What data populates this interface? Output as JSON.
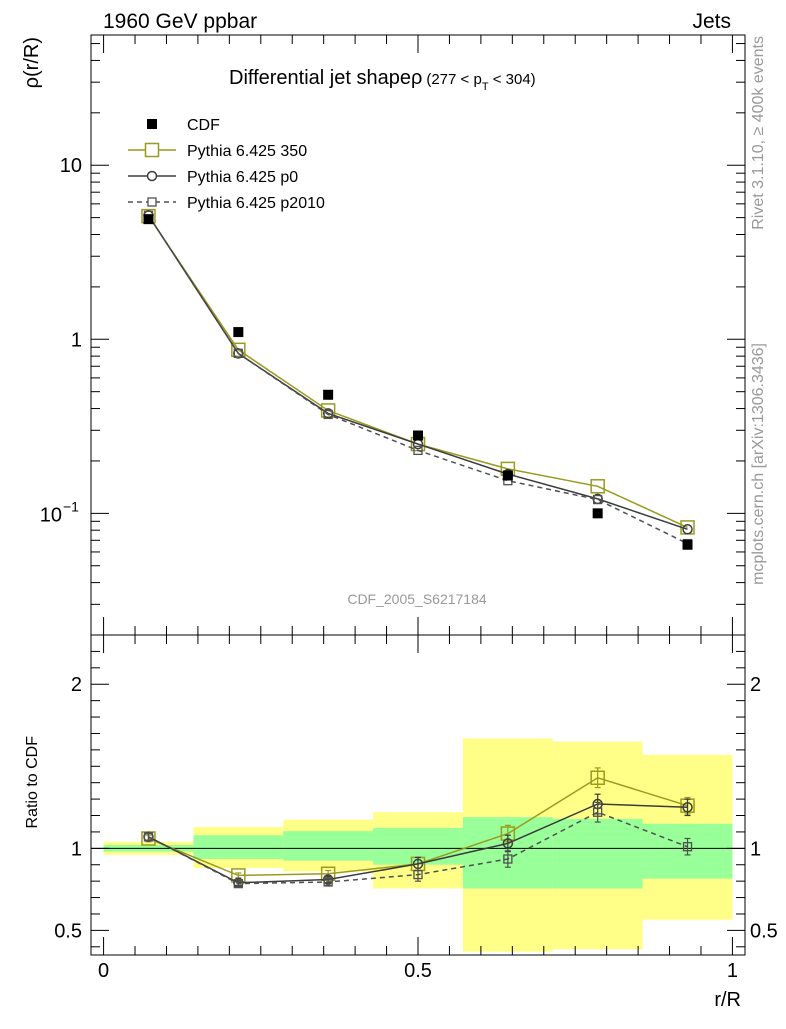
{
  "header": {
    "left": "1960 GeV ppbar",
    "right": "Jets",
    "side_top": "Rivet 3.1.10, ≥ 400k events",
    "side_bottom": "mcplots.cern.ch [arXiv:1306.3436]"
  },
  "colors": {
    "data": "#000000",
    "pythia350": "#9a9a1e",
    "pythia_p0": "#3c3c3c",
    "pythia_p2010": "#505050",
    "band_inner": "#99ff99",
    "band_outer": "#ffff88",
    "watermark": "#999999"
  },
  "chart_data": [
    {
      "type": "line",
      "title": "Differential jet shapeρ",
      "title_suffix": "(277 < p_T < 304)",
      "title_suffix_parts": [
        "(277 < p",
        "T",
        " < 304)"
      ],
      "ylabel": "ρ(r/R)",
      "watermark": "CDF_2005_S6217184",
      "yscale": "log",
      "xlim": [
        -0.02,
        1.02
      ],
      "ylim": [
        0.02,
        56
      ],
      "yticks_major": [
        0.1,
        1,
        10
      ],
      "yticks_labels": [
        "10",
        "",
        "1",
        "10"
      ],
      "yticks_label_parts": {
        "ten": "10",
        "minus_one": "−1",
        "one": "1",
        "ten_pos": "10"
      },
      "x": [
        0.0714,
        0.2143,
        0.3571,
        0.5,
        0.6429,
        0.7857,
        0.9286
      ],
      "series": [
        {
          "name": "CDF",
          "style": "data",
          "values": [
            4.9,
            1.1,
            0.48,
            0.28,
            0.165,
            0.1,
            0.066
          ]
        },
        {
          "name": "Pythia 6.425 350",
          "style": "pythia350",
          "values": [
            5.1,
            0.87,
            0.39,
            0.25,
            0.18,
            0.143,
            0.083
          ]
        },
        {
          "name": "Pythia 6.425 p0",
          "style": "pythia_p0",
          "values": [
            5.15,
            0.83,
            0.375,
            0.25,
            0.168,
            0.121,
            0.081
          ]
        },
        {
          "name": "Pythia 6.425 p2010",
          "style": "pythia_p2010",
          "values": [
            5.15,
            0.83,
            0.37,
            0.23,
            0.154,
            0.12,
            0.067
          ]
        }
      ],
      "legend": "top-left"
    },
    {
      "type": "line",
      "ylabel": "Ratio to CDF",
      "xlabel": "r/R",
      "xlim": [
        -0.02,
        1.02
      ],
      "ylim": [
        0.35,
        2.3
      ],
      "yticks_labels": [
        "0.5",
        "1",
        "2"
      ],
      "yticks_values": [
        0.5,
        1,
        2
      ],
      "xticks_labels": [
        "0",
        "0.5",
        "1"
      ],
      "xticks_values": [
        0,
        0.5,
        1
      ],
      "x_edges": [
        0,
        0.1429,
        0.2857,
        0.4286,
        0.5714,
        0.7143,
        0.8571,
        1.0
      ],
      "band_inner": [
        [
          0.98,
          1.02
        ],
        [
          0.935,
          1.08
        ],
        [
          0.925,
          1.105
        ],
        [
          0.9,
          1.125
        ],
        [
          0.755,
          1.19
        ],
        [
          0.755,
          1.18
        ],
        [
          0.815,
          1.15
        ]
      ],
      "band_outer": [
        [
          0.96,
          1.04
        ],
        [
          0.88,
          1.13
        ],
        [
          0.86,
          1.175
        ],
        [
          0.755,
          1.22
        ],
        [
          0.37,
          1.67
        ],
        [
          0.385,
          1.65
        ],
        [
          0.565,
          1.57
        ]
      ],
      "x": [
        0.0714,
        0.2143,
        0.3571,
        0.5,
        0.6429,
        0.7857,
        0.9286
      ],
      "series": [
        {
          "name": "Pythia 6.425 350",
          "style": "pythia350",
          "values": [
            1.06,
            0.835,
            0.845,
            0.905,
            1.09,
            1.43,
            1.26
          ],
          "errors": [
            0.02,
            0.015,
            0.02,
            0.04,
            0.05,
            0.06,
            0.05
          ]
        },
        {
          "name": "Pythia 6.425 p0",
          "style": "pythia_p0",
          "values": [
            1.07,
            0.79,
            0.81,
            0.905,
            1.03,
            1.27,
            1.25
          ],
          "errors": [
            0.02,
            0.015,
            0.02,
            0.04,
            0.05,
            0.06,
            0.05
          ]
        },
        {
          "name": "Pythia 6.425 p2010",
          "style": "pythia_p2010",
          "values": [
            1.07,
            0.785,
            0.795,
            0.84,
            0.935,
            1.22,
            1.01
          ],
          "errors": [
            0.02,
            0.015,
            0.02,
            0.04,
            0.05,
            0.06,
            0.05
          ]
        }
      ]
    }
  ]
}
